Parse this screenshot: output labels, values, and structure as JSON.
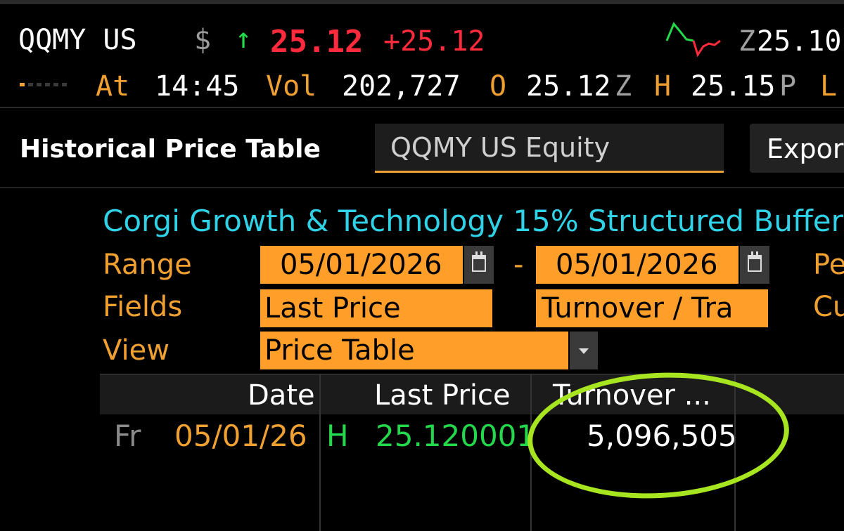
{
  "ticker": {
    "symbol": "QQMY US",
    "currency": "$",
    "direction_arrow": "↑",
    "last_price": "25.12",
    "change": "+25.12",
    "bid_condition": "Z",
    "bid": "25.10",
    "sparkline_icon": "sparkline-icon"
  },
  "quote_line": {
    "at_label": "At",
    "time": "14:45",
    "vol_label": "Vol",
    "volume": "202,727",
    "open_label": "O",
    "open": "25.12",
    "open_cond": "Z",
    "high_label": "H",
    "high": "25.15",
    "high_cond": "P",
    "low_label": "L"
  },
  "panel": {
    "title": "Historical Price Table",
    "security": "QQMY US Equity",
    "export_label": "Expor"
  },
  "settings": {
    "fund_name": "Corgi Growth & Technology 15% Structured Buffer",
    "range_label": "Range",
    "range_start": "05/01/2026",
    "range_sep": "-",
    "range_end": "05/01/2026",
    "period_label": "Pe",
    "fields_label": "Fields",
    "field1": "Last Price",
    "field2": "Turnover / Tra",
    "currency_label": "Cu",
    "view_label": "View",
    "view_value": "Price Table"
  },
  "table": {
    "columns": [
      "Date",
      "Last Price",
      "Turnover ..."
    ],
    "rows": [
      {
        "day": "Fr",
        "date": "05/01/26",
        "flag": "H",
        "last_price": "25.120001",
        "turnover": "5,096,505"
      }
    ]
  },
  "colors": {
    "background": "#000000",
    "accent_orange": "#ff9f2a",
    "label_orange": "#f0a030",
    "up_green": "#23d84a",
    "price_red": "#ff2a3b",
    "fund_cyan": "#2fd2e6",
    "highlight_green": "#a6e51f"
  }
}
